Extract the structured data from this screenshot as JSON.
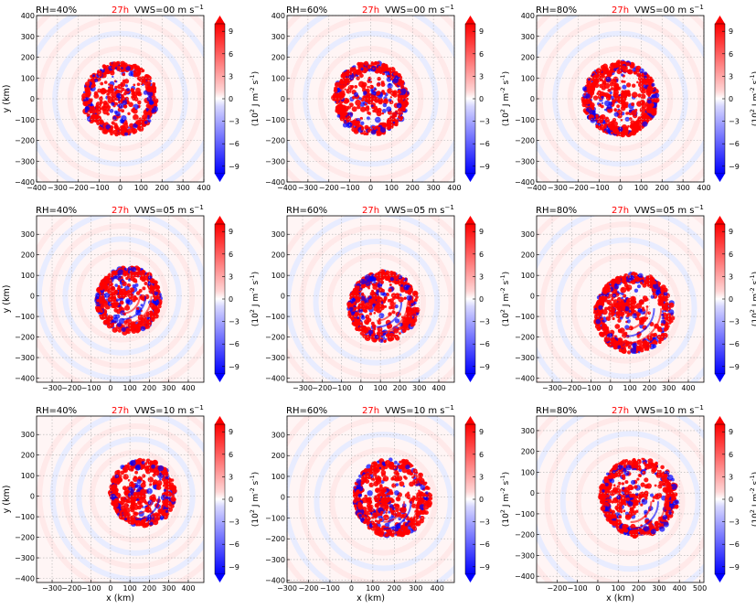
{
  "cbar_label": [
    "(10",
    "2",
    " J m",
    "-2",
    " s",
    "-1",
    ")"
  ],
  "cbar_ticks": [
    9,
    6,
    3,
    0,
    -3,
    -6,
    -9
  ],
  "cbar_tick_labels": [
    "9",
    "6",
    "3",
    "0",
    "−3",
    "−6",
    "−9"
  ],
  "colors": {
    "positive": "#ff0000",
    "negative": "#0000ff",
    "time_label": "#ff0000",
    "grid": "#b0b0b0"
  },
  "chart_data": [
    {
      "type": "heatmap",
      "rh": "RH=40%",
      "time": "27h",
      "vws_main": "VWS=00 m s",
      "vws_exp": "−1",
      "xlabel": "",
      "ylabel": "y (km)",
      "xlim": [
        -400,
        400
      ],
      "ylim": [
        -400,
        400
      ],
      "xticks": [
        -400,
        -300,
        -200,
        -100,
        0,
        100,
        200,
        300,
        400
      ],
      "xtick_labels": [
        "−400",
        "−300",
        "−200",
        "−100",
        "0",
        "100",
        "200",
        "300",
        "400"
      ],
      "yticks": [
        -400,
        -300,
        -200,
        -100,
        0,
        100,
        200,
        300,
        400
      ],
      "ytick_labels": [
        "−400",
        "−300",
        "−200",
        "−100",
        "0",
        "100",
        "200",
        "300",
        "400"
      ],
      "center": [
        0,
        0
      ],
      "radius": 160,
      "shear": 0,
      "moisture": 0.4,
      "grid": true,
      "vmin": -10,
      "vmax": 10
    },
    {
      "type": "heatmap",
      "rh": "RH=60%",
      "time": "27h",
      "vws_main": "VWS=00 m s",
      "vws_exp": "−1",
      "xlabel": "",
      "ylabel": "",
      "xlim": [
        -400,
        400
      ],
      "ylim": [
        -400,
        400
      ],
      "xticks": [
        -400,
        -300,
        -200,
        -100,
        0,
        100,
        200,
        300,
        400
      ],
      "xtick_labels": [
        "−400",
        "−300",
        "−200",
        "−100",
        "0",
        "100",
        "200",
        "300",
        "400"
      ],
      "yticks": [
        -400,
        -300,
        -200,
        -100,
        0,
        100,
        200,
        300,
        400
      ],
      "ytick_labels": [
        "−400",
        "−300",
        "−200",
        "−100",
        "0",
        "100",
        "200",
        "300",
        "400"
      ],
      "center": [
        0,
        0
      ],
      "radius": 160,
      "shear": 0,
      "moisture": 0.6,
      "grid": true,
      "vmin": -10,
      "vmax": 10
    },
    {
      "type": "heatmap",
      "rh": "RH=80%",
      "time": "27h",
      "vws_main": "VWS=00 m s",
      "vws_exp": "−1",
      "xlabel": "",
      "ylabel": "",
      "xlim": [
        -400,
        400
      ],
      "ylim": [
        -400,
        400
      ],
      "xticks": [
        -400,
        -300,
        -200,
        -100,
        0,
        100,
        200,
        300,
        400
      ],
      "xtick_labels": [
        "−400",
        "−300",
        "−200",
        "−100",
        "0",
        "100",
        "200",
        "300",
        "400"
      ],
      "yticks": [
        -400,
        -300,
        -200,
        -100,
        0,
        100,
        200,
        300,
        400
      ],
      "ytick_labels": [
        "−400",
        "−300",
        "−200",
        "−100",
        "0",
        "100",
        "200",
        "300",
        "400"
      ],
      "center": [
        0,
        0
      ],
      "radius": 160,
      "shear": 0,
      "moisture": 0.8,
      "grid": true,
      "vmin": -10,
      "vmax": 10
    },
    {
      "type": "heatmap",
      "rh": "RH=40%",
      "time": "27h",
      "vws_main": "VWS=05 m s",
      "vws_exp": "−1",
      "xlabel": "",
      "ylabel": "y (km)",
      "xlim": [
        -380,
        480
      ],
      "ylim": [
        -420,
        390
      ],
      "xticks": [
        -300,
        -200,
        -100,
        0,
        100,
        200,
        300,
        400
      ],
      "xtick_labels": [
        "−300",
        "−200",
        "−100",
        "0",
        "100",
        "200",
        "300",
        "400"
      ],
      "yticks": [
        -400,
        -300,
        -200,
        -100,
        0,
        100,
        200,
        300
      ],
      "ytick_labels": [
        "−400",
        "−300",
        "−200",
        "−100",
        "0",
        "100",
        "200",
        "300"
      ],
      "center": [
        60,
        0
      ],
      "radius": 150,
      "shear": 5,
      "moisture": 0.4,
      "grid": true,
      "vmin": -10,
      "vmax": 10
    },
    {
      "type": "heatmap",
      "rh": "RH=60%",
      "time": "27h",
      "vws_main": "VWS=05 m s",
      "vws_exp": "−1",
      "xlabel": "",
      "ylabel": "",
      "xlim": [
        -380,
        480
      ],
      "ylim": [
        -420,
        390
      ],
      "xticks": [
        -300,
        -200,
        -100,
        0,
        100,
        200,
        300,
        400
      ],
      "xtick_labels": [
        "−300",
        "−200",
        "−100",
        "0",
        "100",
        "200",
        "300",
        "400"
      ],
      "yticks": [
        -400,
        -300,
        -200,
        -100,
        0,
        100,
        200,
        300
      ],
      "ytick_labels": [
        "−400",
        "−300",
        "−200",
        "−100",
        "0",
        "100",
        "200",
        "300"
      ],
      "center": [
        80,
        -30
      ],
      "radius": 160,
      "shear": 5,
      "moisture": 0.6,
      "grid": true,
      "vmin": -10,
      "vmax": 10
    },
    {
      "type": "heatmap",
      "rh": "RH=80%",
      "time": "27h",
      "vws_main": "VWS=05 m s",
      "vws_exp": "−1",
      "xlabel": "",
      "ylabel": "",
      "xlim": [
        -380,
        480
      ],
      "ylim": [
        -420,
        390
      ],
      "xticks": [
        -300,
        -200,
        -100,
        0,
        100,
        200,
        300,
        400
      ],
      "xtick_labels": [
        "−300",
        "−200",
        "−100",
        "0",
        "100",
        "200",
        "300",
        "400"
      ],
      "yticks": [
        -400,
        -300,
        -200,
        -100,
        0,
        100,
        200,
        300
      ],
      "ytick_labels": [
        "−400",
        "−300",
        "−200",
        "−100",
        "0",
        "100",
        "200",
        "300"
      ],
      "center": [
        80,
        -60
      ],
      "radius": 180,
      "shear": 5,
      "moisture": 0.8,
      "grid": true,
      "vmin": -10,
      "vmax": 10
    },
    {
      "type": "heatmap",
      "rh": "RH=40%",
      "time": "27h",
      "vws_main": "VWS=10 m s",
      "vws_exp": "−1",
      "xlabel": "x (km)",
      "ylabel": "y (km)",
      "xlim": [
        -380,
        480
      ],
      "ylim": [
        -420,
        390
      ],
      "xticks": [
        -300,
        -200,
        -100,
        0,
        100,
        200,
        300,
        400
      ],
      "xtick_labels": [
        "−300",
        "−200",
        "−100",
        "0",
        "100",
        "200",
        "300",
        "400"
      ],
      "yticks": [
        -400,
        -300,
        -200,
        -100,
        0,
        100,
        200,
        300
      ],
      "ytick_labels": [
        "−400",
        "−300",
        "−200",
        "−100",
        "0",
        "100",
        "200",
        "300"
      ],
      "center": [
        130,
        0
      ],
      "radius": 150,
      "shear": 10,
      "moisture": 0.4,
      "grid": true,
      "vmin": -10,
      "vmax": 10
    },
    {
      "type": "heatmap",
      "rh": "RH=60%",
      "time": "27h",
      "vws_main": "VWS=10 m s",
      "vws_exp": "−1",
      "xlabel": "x (km)",
      "ylabel": "",
      "xlim": [
        -300,
        480
      ],
      "ylim": [
        -410,
        390
      ],
      "xticks": [
        -300,
        -200,
        -100,
        0,
        100,
        200,
        300,
        400
      ],
      "xtick_labels": [
        "−300",
        "−200",
        "−100",
        "0",
        "100",
        "200",
        "300",
        "400"
      ],
      "yticks": [
        -400,
        -300,
        -200,
        -100,
        0,
        100,
        200,
        300
      ],
      "ytick_labels": [
        "−400",
        "−300",
        "−200",
        "−100",
        "0",
        "100",
        "200",
        "300"
      ],
      "center": [
        150,
        -20
      ],
      "radius": 160,
      "shear": 10,
      "moisture": 0.6,
      "grid": true,
      "vmin": -10,
      "vmax": 10
    },
    {
      "type": "heatmap",
      "rh": "RH=80%",
      "time": "27h",
      "vws_main": "VWS=10 m s",
      "vws_exp": "−1",
      "xlabel": "x (km)",
      "ylabel": "",
      "xlim": [
        -300,
        520
      ],
      "ylim": [
        -430,
        370
      ],
      "xticks": [
        -200,
        -100,
        0,
        100,
        200,
        300,
        400,
        500
      ],
      "xtick_labels": [
        "−200",
        "−100",
        "0",
        "100",
        "200",
        "300",
        "400",
        "500"
      ],
      "yticks": [
        -400,
        -300,
        -200,
        -100,
        0,
        100,
        200,
        300
      ],
      "ytick_labels": [
        "−400",
        "−300",
        "−200",
        "−100",
        "0",
        "100",
        "200",
        "300"
      ],
      "center": [
        160,
        -40
      ],
      "radius": 170,
      "shear": 10,
      "moisture": 0.8,
      "grid": true,
      "vmin": -10,
      "vmax": 10
    }
  ]
}
